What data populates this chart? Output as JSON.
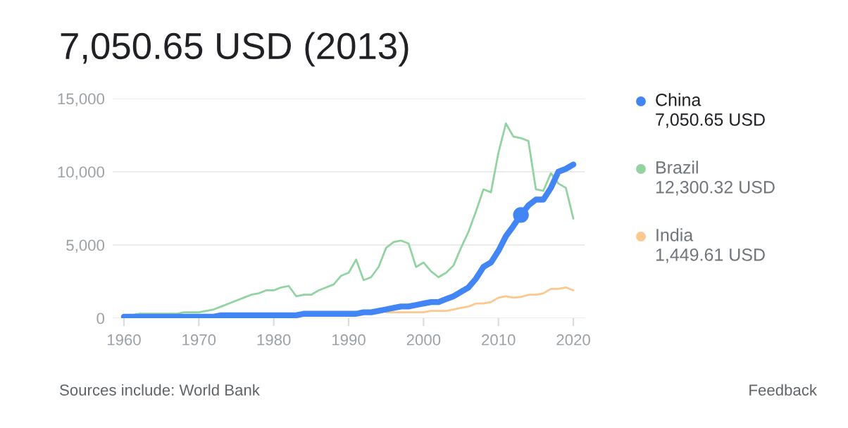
{
  "chart_data": {
    "type": "line",
    "title": "7,050.65 USD (2013)",
    "x": [
      1960,
      1961,
      1962,
      1963,
      1964,
      1965,
      1966,
      1967,
      1968,
      1969,
      1970,
      1971,
      1972,
      1973,
      1974,
      1975,
      1976,
      1977,
      1978,
      1979,
      1980,
      1981,
      1982,
      1983,
      1984,
      1985,
      1986,
      1987,
      1988,
      1989,
      1990,
      1991,
      1992,
      1993,
      1994,
      1995,
      1996,
      1997,
      1998,
      1999,
      2000,
      2001,
      2002,
      2003,
      2004,
      2005,
      2006,
      2007,
      2008,
      2009,
      2010,
      2011,
      2012,
      2013,
      2014,
      2015,
      2016,
      2017,
      2018,
      2019,
      2020
    ],
    "series": [
      {
        "name": "China",
        "color": "#4285f4",
        "values": [
          100,
          100,
          100,
          100,
          100,
          100,
          100,
          100,
          100,
          100,
          100,
          100,
          100,
          200,
          200,
          200,
          200,
          200,
          200,
          200,
          200,
          200,
          200,
          200,
          300,
          300,
          300,
          300,
          300,
          300,
          300,
          300,
          400,
          400,
          500,
          600,
          700,
          800,
          800,
          900,
          1000,
          1100,
          1100,
          1300,
          1500,
          1800,
          2100,
          2700,
          3500,
          3800,
          4600,
          5600,
          6300,
          7050,
          7700,
          8100,
          8100,
          8900,
          10000,
          10200,
          10500
        ]
      },
      {
        "name": "Brazil",
        "color": "#93d3a2",
        "values": [
          200,
          200,
          300,
          300,
          300,
          300,
          300,
          300,
          400,
          400,
          400,
          500,
          600,
          800,
          1000,
          1200,
          1400,
          1600,
          1700,
          1900,
          1900,
          2100,
          2200,
          1500,
          1600,
          1600,
          1900,
          2100,
          2300,
          2900,
          3100,
          4000,
          2600,
          2800,
          3500,
          4800,
          5200,
          5300,
          5100,
          3500,
          3800,
          3200,
          2800,
          3100,
          3600,
          4800,
          5900,
          7300,
          8800,
          8600,
          11300,
          13300,
          12400,
          12300,
          12100,
          8800,
          8700,
          9900,
          9200,
          8900,
          6800
        ]
      },
      {
        "name": "India",
        "color": "#fdc78e",
        "values": [
          null,
          null,
          null,
          null,
          null,
          null,
          null,
          null,
          null,
          null,
          null,
          null,
          null,
          null,
          null,
          null,
          null,
          null,
          null,
          null,
          null,
          null,
          null,
          null,
          null,
          null,
          null,
          null,
          null,
          null,
          null,
          null,
          null,
          null,
          null,
          400,
          400,
          400,
          400,
          400,
          400,
          500,
          500,
          500,
          600,
          700,
          800,
          1000,
          1000,
          1100,
          1400,
          1500,
          1400,
          1450,
          1600,
          1600,
          1700,
          2000,
          2000,
          2100,
          1900
        ]
      },
      {
        "type": "scatter",
        "color": "#4285f4",
        "x": [
          2013
        ],
        "values": [
          7050
        ]
      }
    ],
    "xlim": [
      1958.5,
      2021.5
    ],
    "xticks": [
      1960,
      1970,
      1980,
      1990,
      2000,
      2010,
      2020
    ],
    "ylim": [
      0,
      15000
    ],
    "yticks": [
      {
        "value": 0,
        "label": "0"
      },
      {
        "value": 5000,
        "label": "5,000"
      },
      {
        "value": 10000,
        "label": "10,000"
      },
      {
        "value": 15000,
        "label": "15,000"
      }
    ],
    "grid": "y",
    "legend": "right",
    "annotations": [
      "7,050.65 USD",
      "12,300.32 USD",
      "1,449.61 USD",
      "Sources include: World Bank",
      "Feedback"
    ]
  }
}
